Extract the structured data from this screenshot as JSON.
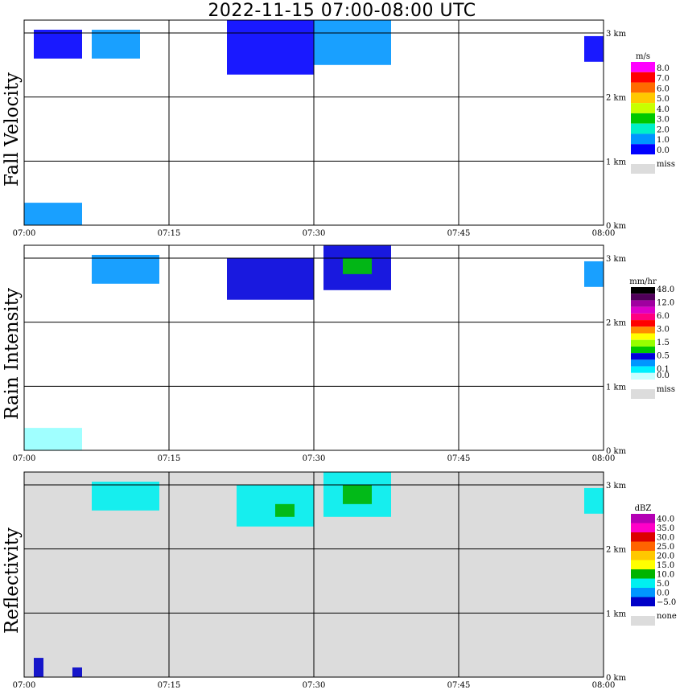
{
  "title": "2022-11-15   07:00-08:00 UTC",
  "chart_data": [
    {
      "type": "heatmap",
      "title": "Fall Velocity",
      "x_ticks": [
        "07:00",
        "07:15",
        "07:30",
        "07:45",
        "08:00"
      ],
      "y_ticks": [
        "0 km",
        "1 km",
        "2 km",
        "3 km"
      ],
      "xlim": [
        "07:00",
        "08:00"
      ],
      "ylim_km": [
        0,
        3.2
      ],
      "grid": true,
      "background": "#ffffff",
      "colorbar": {
        "unit": "m/s",
        "labels": [
          "8.0",
          "7.0",
          "6.0",
          "5.0",
          "4.0",
          "3.0",
          "2.0",
          "1.0",
          "0.0"
        ],
        "colors": [
          "#ff00ff",
          "#ff0000",
          "#ff6a00",
          "#ffc800",
          "#c8ff00",
          "#00c800",
          "#00f0c8",
          "#0096ff",
          "#0000ff"
        ],
        "miss_label": "miss",
        "miss_color": "#dcdcdc"
      },
      "echoes": [
        {
          "t0": "07:01",
          "t1": "07:06",
          "z0": 2.6,
          "z1": 3.05,
          "color": "#0000ff"
        },
        {
          "t0": "07:07",
          "t1": "07:12",
          "z0": 2.6,
          "z1": 3.05,
          "color": "#0096ff"
        },
        {
          "t0": "07:21",
          "t1": "07:30",
          "z0": 2.35,
          "z1": 3.2,
          "color": "#0000ff"
        },
        {
          "t0": "07:30",
          "t1": "07:38",
          "z0": 2.5,
          "z1": 3.2,
          "color": "#0096ff"
        },
        {
          "t0": "07:58",
          "t1": "08:00",
          "z0": 2.55,
          "z1": 2.95,
          "color": "#0000ff"
        },
        {
          "t0": "07:00",
          "t1": "07:06",
          "z0": 0.0,
          "z1": 0.35,
          "color": "#0096ff"
        }
      ]
    },
    {
      "type": "heatmap",
      "title": "Rain Intensity",
      "x_ticks": [
        "07:00",
        "07:15",
        "07:30",
        "07:45",
        "08:00"
      ],
      "y_ticks": [
        "0 km",
        "1 km",
        "2 km",
        "3 km"
      ],
      "xlim": [
        "07:00",
        "08:00"
      ],
      "ylim_km": [
        0,
        3.2
      ],
      "grid": true,
      "background": "#ffffff",
      "colorbar": {
        "unit": "mm/hr",
        "labels": [
          "48.0",
          "",
          "12.0",
          "",
          "6.0",
          "",
          "3.0",
          "",
          "1.5",
          "",
          "0.5",
          "",
          "0.1",
          "0.0"
        ],
        "colors": [
          "#000000",
          "#50005a",
          "#a000a0",
          "#dc00c8",
          "#ff0080",
          "#ff0000",
          "#ff8c00",
          "#ffff00",
          "#96ff00",
          "#00c800",
          "#0000dc",
          "#0096ff",
          "#00f0ff",
          "#c8ffff"
        ],
        "miss_label": "miss",
        "miss_color": "#dcdcdc"
      },
      "echoes": [
        {
          "t0": "07:07",
          "t1": "07:14",
          "z0": 2.6,
          "z1": 3.05,
          "color": "#0096ff"
        },
        {
          "t0": "07:21",
          "t1": "07:30",
          "z0": 2.35,
          "z1": 3.0,
          "color": "#0000dc"
        },
        {
          "t0": "07:31",
          "t1": "07:38",
          "z0": 2.5,
          "z1": 3.2,
          "color": "#0000dc"
        },
        {
          "t0": "07:33",
          "t1": "07:36",
          "z0": 2.75,
          "z1": 3.0,
          "color": "#00c800"
        },
        {
          "t0": "07:58",
          "t1": "08:00",
          "z0": 2.55,
          "z1": 2.95,
          "color": "#0096ff"
        },
        {
          "t0": "07:00",
          "t1": "07:06",
          "z0": 0.0,
          "z1": 0.35,
          "color": "#96ffff"
        }
      ]
    },
    {
      "type": "heatmap",
      "title": "Reflectivity",
      "x_ticks": [
        "07:00",
        "07:15",
        "07:30",
        "07:45",
        "08:00"
      ],
      "y_ticks": [
        "0 km",
        "1 km",
        "2 km",
        "3 km"
      ],
      "xlim": [
        "07:00",
        "08:00"
      ],
      "ylim_km": [
        0,
        3.2
      ],
      "grid": true,
      "background": "#dcdcdc",
      "colorbar": {
        "unit": "dBZ",
        "labels": [
          "40.0",
          "35.0",
          "30.0",
          "25.0",
          "20.0",
          "15.0",
          "10.0",
          "5.0",
          "0.0",
          "−5.0"
        ],
        "colors": [
          "#b400b4",
          "#ff00c8",
          "#dc0000",
          "#ff6400",
          "#ffc800",
          "#ffff00",
          "#00b400",
          "#00f0f0",
          "#0096ff",
          "#0000c8"
        ],
        "miss_label": "none",
        "miss_color": "#dcdcdc"
      },
      "echoes": [
        {
          "t0": "07:07",
          "t1": "07:14",
          "z0": 2.6,
          "z1": 3.05,
          "color": "#00f0f0"
        },
        {
          "t0": "07:22",
          "t1": "07:30",
          "z0": 2.35,
          "z1": 3.0,
          "color": "#00f0f0"
        },
        {
          "t0": "07:26",
          "t1": "07:28",
          "z0": 2.5,
          "z1": 2.7,
          "color": "#00b400"
        },
        {
          "t0": "07:31",
          "t1": "07:38",
          "z0": 2.5,
          "z1": 3.2,
          "color": "#00f0f0"
        },
        {
          "t0": "07:33",
          "t1": "07:36",
          "z0": 2.7,
          "z1": 3.0,
          "color": "#00b400"
        },
        {
          "t0": "07:58",
          "t1": "08:00",
          "z0": 2.55,
          "z1": 2.95,
          "color": "#00f0f0"
        },
        {
          "t0": "07:01",
          "t1": "07:02",
          "z0": 0.0,
          "z1": 0.3,
          "color": "#0000c8"
        },
        {
          "t0": "07:05",
          "t1": "07:06",
          "z0": 0.0,
          "z1": 0.15,
          "color": "#0000c8"
        }
      ]
    }
  ]
}
